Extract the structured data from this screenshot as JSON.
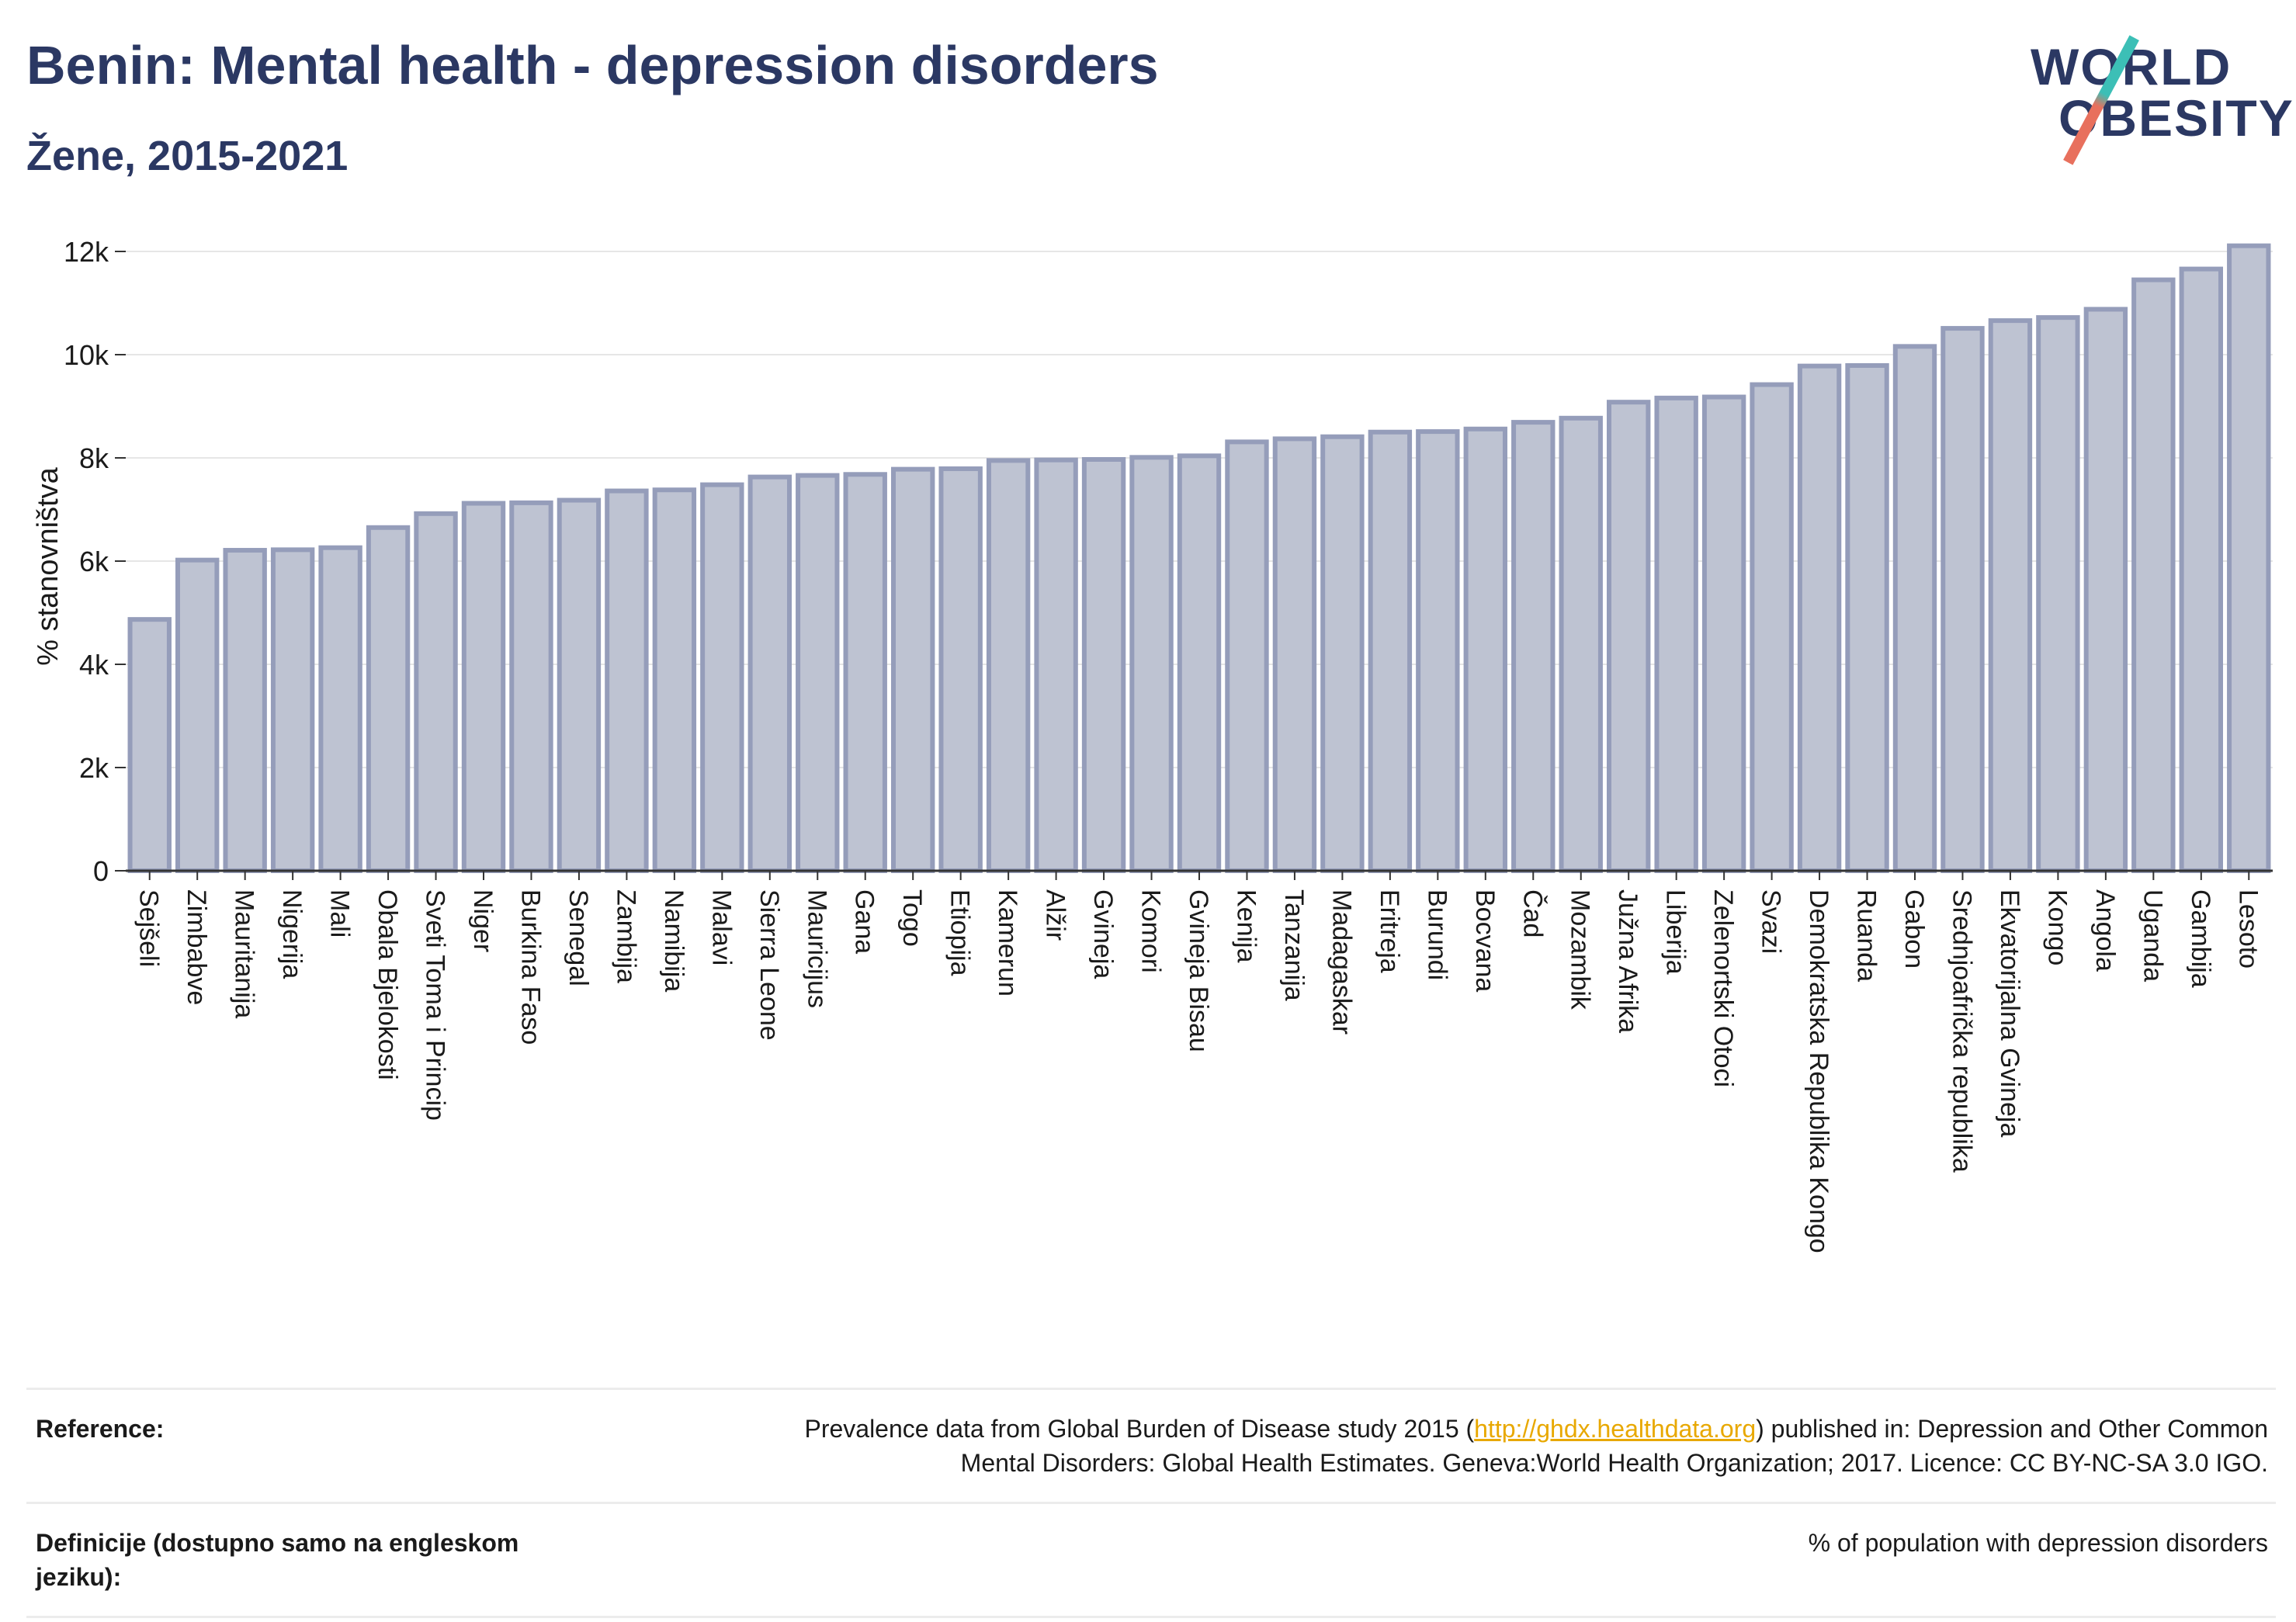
{
  "header": {
    "title": "Benin: Mental health - depression disorders",
    "subtitle": "Žene, 2015-2021"
  },
  "logo": {
    "line1": "WORLD",
    "line2": "OBESITY",
    "accent_teal": "#3cbfb6",
    "accent_coral": "#e8705d"
  },
  "colors": {
    "title": "#2b3863",
    "bar_fill": "#bec3d2",
    "bar_stroke": "#959dba",
    "grid": "#e6e6e6"
  },
  "chart_data": {
    "type": "bar",
    "title": "",
    "xlabel": "",
    "ylabel": "% stanovništva",
    "ylim": [
      0,
      12000
    ],
    "yticks": [
      0,
      2000,
      4000,
      6000,
      8000,
      10000,
      12000
    ],
    "ytick_labels": [
      "0",
      "2k",
      "4k",
      "6k",
      "8k",
      "10k",
      "12k"
    ],
    "grid": true,
    "legend": "none",
    "categories": [
      "Sejšeli",
      "Zimbabve",
      "Mauritanija",
      "Nigerija",
      "Mali",
      "Obala Bjelokosti",
      "Sveti Toma i Princip",
      "Niger",
      "Burkina Faso",
      "Senegal",
      "Zambija",
      "Namibija",
      "Malavi",
      "Sierra Leone",
      "Mauricijus",
      "Gana",
      "Togo",
      "Etiopija",
      "Kamerun",
      "Alžir",
      "Gvineja",
      "Komori",
      "Gvineja Bisau",
      "Kenija",
      "Tanzanija",
      "Madagaskar",
      "Eritreja",
      "Burundi",
      "Bocvana",
      "Čad",
      "Mozambik",
      "Južna Afrika",
      "Liberija",
      "Zelenortski Otoci",
      "Svazi",
      "Demokratska Republika Kongo",
      "Ruanda",
      "Gabon",
      "Srednjoafrička republika",
      "Ekvatorijalna Gvineja",
      "Kongo",
      "Angola",
      "Uganda",
      "Gambija",
      "Lesoto"
    ],
    "values": [
      4870,
      6020,
      6210,
      6220,
      6260,
      6650,
      6920,
      7120,
      7130,
      7180,
      7360,
      7380,
      7480,
      7630,
      7660,
      7680,
      7780,
      7790,
      7950,
      7960,
      7970,
      8010,
      8040,
      8310,
      8370,
      8410,
      8500,
      8510,
      8560,
      8690,
      8770,
      9080,
      9160,
      9180,
      9420,
      9780,
      9790,
      10160,
      10510,
      10660,
      10720,
      10880,
      11450,
      11660,
      12110
    ]
  },
  "footer": {
    "reference_label": "Reference:",
    "reference_text_1": "Prevalence data from Global Burden of Disease study 2015 (",
    "reference_link": "http://ghdx.healthdata.org",
    "reference_text_2": ") published in: Depression and Other Common",
    "reference_text_3": "Mental Disorders: Global Health Estimates. Geneva:World Health Organization; 2017. Licence: CC BY-NC-SA 3.0 IGO.",
    "definition_label": "Definicije (dostupno samo na engleskom jeziku):",
    "definition_text": "% of population with depression disorders"
  }
}
